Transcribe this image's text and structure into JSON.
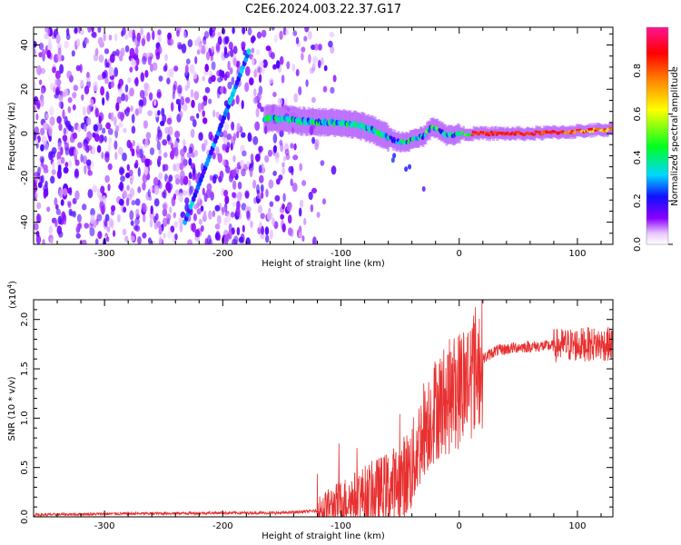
{
  "figure_title": "C2E6.2024.003.22.37.G17",
  "chart_data": [
    {
      "type": "heatmap",
      "xlabel": "Height of straight line (km)",
      "ylabel": "Frequency (Hz)",
      "xlim": [
        -360,
        130
      ],
      "ylim": [
        -50,
        48
      ],
      "x_ticks": [
        -300,
        -200,
        -100,
        0,
        100
      ],
      "x_tick_labels": [
        "-300",
        "-200",
        "-100",
        "0",
        "100"
      ],
      "y_ticks": [
        -40,
        -20,
        0,
        20,
        40
      ],
      "y_tick_labels": [
        "-40",
        "-20",
        "0",
        "20",
        "40"
      ],
      "colorbar": {
        "label": "Normalized spectral amplitude",
        "ticks": [
          0.0,
          0.2,
          0.4,
          0.6,
          0.8
        ],
        "tick_labels": [
          "0.0",
          "0.2",
          "0.4",
          "0.6",
          "0.8"
        ],
        "colormap": "rainbow"
      },
      "features": {
        "noise_region_x": [
          -360,
          -120
        ],
        "doppler_streak": {
          "x": [
            -232,
            -178
          ],
          "y": [
            -40,
            37
          ]
        },
        "main_band": [
          [
            -160,
            7
          ],
          [
            -140,
            6
          ],
          [
            -120,
            5
          ],
          [
            -100,
            5
          ],
          [
            -90,
            4
          ],
          [
            -80,
            3
          ],
          [
            -70,
            1
          ],
          [
            -60,
            -2
          ],
          [
            -50,
            -4
          ],
          [
            -40,
            -3
          ],
          [
            -30,
            -1
          ],
          [
            -25,
            2
          ],
          [
            -20,
            3
          ],
          [
            -15,
            1
          ],
          [
            -10,
            -1
          ],
          [
            0,
            0
          ],
          [
            20,
            0
          ],
          [
            60,
            0
          ],
          [
            100,
            1
          ],
          [
            130,
            2
          ]
        ]
      },
      "grid": false
    },
    {
      "type": "line",
      "xlabel": "Height of straight line (km)",
      "ylabel": "SNR (10 * v/v)",
      "y_multiplier": "(x10",
      "y_multiplier_exp": "4",
      "y_multiplier_close": ")",
      "xlim": [
        -360,
        130
      ],
      "ylim": [
        0,
        2.2
      ],
      "x_ticks": [
        -300,
        -200,
        -100,
        0,
        100
      ],
      "x_tick_labels": [
        "-300",
        "-200",
        "-100",
        "0",
        "100"
      ],
      "y_ticks": [
        0.0,
        0.5,
        1.0,
        1.5,
        2.0
      ],
      "y_tick_labels": [
        "0.0",
        "0.5",
        "1.0",
        "1.5",
        "2.0"
      ],
      "series": [
        {
          "color": "#e83030",
          "envelope": [
            [
              -360,
              0.02
            ],
            [
              -300,
              0.03
            ],
            [
              -200,
              0.04
            ],
            [
              -150,
              0.04
            ],
            [
              -120,
              0.06
            ],
            [
              -100,
              0.15
            ],
            [
              -80,
              0.22
            ],
            [
              -60,
              0.28
            ],
            [
              -50,
              0.35
            ],
            [
              -40,
              0.5
            ],
            [
              -30,
              0.9
            ],
            [
              -20,
              1.1
            ],
            [
              -10,
              1.2
            ],
            [
              0,
              1.3
            ],
            [
              10,
              1.45
            ],
            [
              20,
              1.6
            ],
            [
              30,
              1.68
            ],
            [
              50,
              1.72
            ],
            [
              70,
              1.73
            ],
            [
              90,
              1.74
            ],
            [
              110,
              1.75
            ],
            [
              130,
              1.75
            ]
          ]
        }
      ],
      "grid": false
    }
  ]
}
